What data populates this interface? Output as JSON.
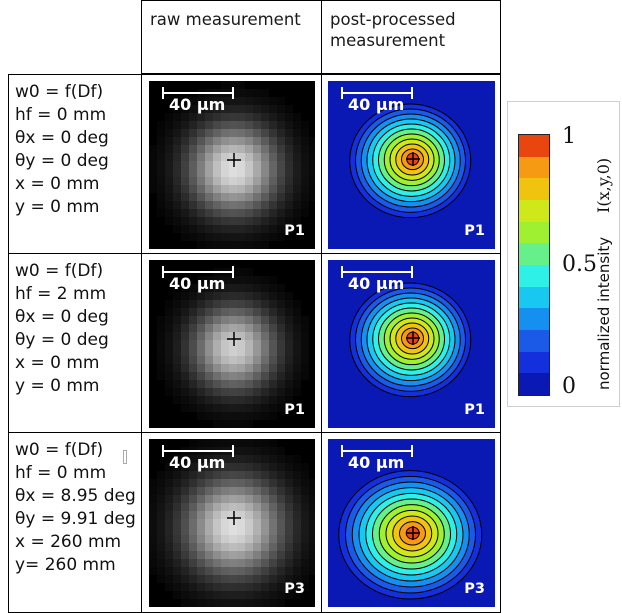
{
  "headers": {
    "raw": "raw measurement",
    "post": "post-processed measurement"
  },
  "rows": [
    {
      "params": {
        "w0": "w0 = f(Df)",
        "hf": "hf = 0 mm",
        "theta_x": "θx = 0 deg",
        "theta_y": "θy = 0 deg",
        "x": "x = 0 mm",
        "y": "y = 0 mm"
      },
      "raw_scale": "40 µm",
      "raw_label": "P1",
      "post_scale": "40 µm",
      "post_label": "P1"
    },
    {
      "params": {
        "w0": "w0 = f(Df)",
        "hf": "hf = 2 mm",
        "theta_x": "θx = 0 deg",
        "theta_y": "θy = 0 deg",
        "x": "x = 0 mm",
        "y": "y = 0 mm"
      },
      "raw_scale": "40 µm",
      "raw_label": "P1",
      "post_scale": "40 µm",
      "post_label": "P1"
    },
    {
      "params": {
        "w0": "w0 = f(Df)",
        "hf": "hf = 0 mm",
        "theta_x": "θx = 8.95 deg",
        "theta_y": "θy = 9.91 deg",
        "x": "x = 260 mm",
        "y": "y= 260 mm"
      },
      "raw_scale": "40 µm",
      "raw_label": "P3",
      "post_scale": "40 µm",
      "post_label": "P3"
    }
  ],
  "colorbar": {
    "ticks": [
      "1",
      "0.5",
      "0"
    ],
    "label": "normalized intensity",
    "label_math": "I(x,y,0)",
    "colors": [
      "#e8450f",
      "#f59a12",
      "#f0c30e",
      "#cfe81a",
      "#9ef030",
      "#66f08a",
      "#2ef0e6",
      "#18c8f0",
      "#1690f0",
      "#1a5ae6",
      "#1430dc",
      "#0a18b4"
    ]
  }
}
